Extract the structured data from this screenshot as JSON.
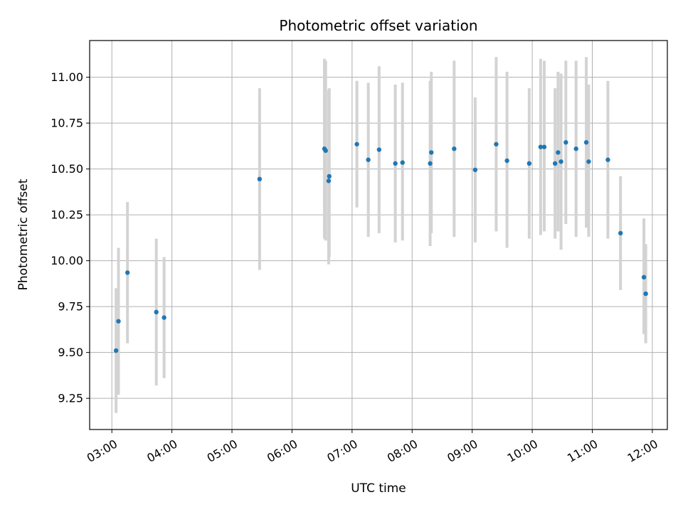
{
  "chart_data": {
    "type": "scatter",
    "title": "Photometric offset variation",
    "xlabel": "UTC time",
    "ylabel": "Photometric offset",
    "x_unit": "hours UTC",
    "xlim": [
      2.63,
      12.25
    ],
    "ylim": [
      9.08,
      11.2
    ],
    "x_ticks": [
      3,
      4,
      5,
      6,
      7,
      8,
      9,
      10,
      11,
      12
    ],
    "x_tick_labels": [
      "03:00",
      "04:00",
      "05:00",
      "06:00",
      "07:00",
      "08:00",
      "09:00",
      "10:00",
      "11:00",
      "12:00"
    ],
    "y_ticks": [
      9.25,
      9.5,
      9.75,
      10.0,
      10.25,
      10.5,
      10.75,
      11.0
    ],
    "y_tick_labels": [
      "9.25",
      "9.50",
      "9.75",
      "10.00",
      "10.25",
      "10.50",
      "10.75",
      "11.00"
    ],
    "grid": true,
    "colors": {
      "point": "#1f77b4",
      "errorbar": "#d3d3d3",
      "grid": "#b0b0b0"
    },
    "points": [
      {
        "x": 3.07,
        "y": 9.51,
        "lo": 9.17,
        "hi": 9.85
      },
      {
        "x": 3.11,
        "y": 9.67,
        "lo": 9.27,
        "hi": 10.07
      },
      {
        "x": 3.26,
        "y": 9.935,
        "lo": 9.55,
        "hi": 10.32
      },
      {
        "x": 3.74,
        "y": 9.72,
        "lo": 9.32,
        "hi": 10.12
      },
      {
        "x": 3.87,
        "y": 9.69,
        "lo": 9.36,
        "hi": 10.02
      },
      {
        "x": 5.46,
        "y": 10.445,
        "lo": 9.95,
        "hi": 10.94
      },
      {
        "x": 6.54,
        "y": 10.61,
        "lo": 10.12,
        "hi": 11.1
      },
      {
        "x": 6.56,
        "y": 10.6,
        "lo": 10.11,
        "hi": 11.09
      },
      {
        "x": 6.61,
        "y": 10.435,
        "lo": 9.98,
        "hi": 10.93
      },
      {
        "x": 6.62,
        "y": 10.46,
        "lo": 10.02,
        "hi": 10.94
      },
      {
        "x": 7.08,
        "y": 10.635,
        "lo": 10.29,
        "hi": 10.98
      },
      {
        "x": 7.27,
        "y": 10.55,
        "lo": 10.13,
        "hi": 10.97
      },
      {
        "x": 7.45,
        "y": 10.605,
        "lo": 10.15,
        "hi": 11.06
      },
      {
        "x": 7.72,
        "y": 10.53,
        "lo": 10.1,
        "hi": 10.96
      },
      {
        "x": 7.84,
        "y": 10.535,
        "lo": 10.11,
        "hi": 10.97
      },
      {
        "x": 8.3,
        "y": 10.53,
        "lo": 10.08,
        "hi": 10.98
      },
      {
        "x": 8.32,
        "y": 10.59,
        "lo": 10.15,
        "hi": 11.03
      },
      {
        "x": 8.7,
        "y": 10.61,
        "lo": 10.13,
        "hi": 11.09
      },
      {
        "x": 9.05,
        "y": 10.495,
        "lo": 10.1,
        "hi": 10.89
      },
      {
        "x": 9.4,
        "y": 10.635,
        "lo": 10.16,
        "hi": 11.11
      },
      {
        "x": 9.58,
        "y": 10.545,
        "lo": 10.07,
        "hi": 11.03
      },
      {
        "x": 9.95,
        "y": 10.53,
        "lo": 10.12,
        "hi": 10.94
      },
      {
        "x": 10.14,
        "y": 10.62,
        "lo": 10.14,
        "hi": 11.1
      },
      {
        "x": 10.2,
        "y": 10.62,
        "lo": 10.16,
        "hi": 11.09
      },
      {
        "x": 10.38,
        "y": 10.53,
        "lo": 10.12,
        "hi": 10.94
      },
      {
        "x": 10.43,
        "y": 10.59,
        "lo": 10.16,
        "hi": 11.03
      },
      {
        "x": 10.48,
        "y": 10.54,
        "lo": 10.06,
        "hi": 11.02
      },
      {
        "x": 10.56,
        "y": 10.645,
        "lo": 10.2,
        "hi": 11.09
      },
      {
        "x": 10.73,
        "y": 10.61,
        "lo": 10.13,
        "hi": 11.09
      },
      {
        "x": 10.9,
        "y": 10.645,
        "lo": 10.18,
        "hi": 11.11
      },
      {
        "x": 10.94,
        "y": 10.54,
        "lo": 10.13,
        "hi": 10.96
      },
      {
        "x": 11.26,
        "y": 10.55,
        "lo": 10.12,
        "hi": 10.98
      },
      {
        "x": 11.47,
        "y": 10.15,
        "lo": 9.84,
        "hi": 10.46
      },
      {
        "x": 11.86,
        "y": 9.91,
        "lo": 9.6,
        "hi": 10.23
      },
      {
        "x": 11.89,
        "y": 9.82,
        "lo": 9.55,
        "hi": 10.09
      }
    ]
  }
}
